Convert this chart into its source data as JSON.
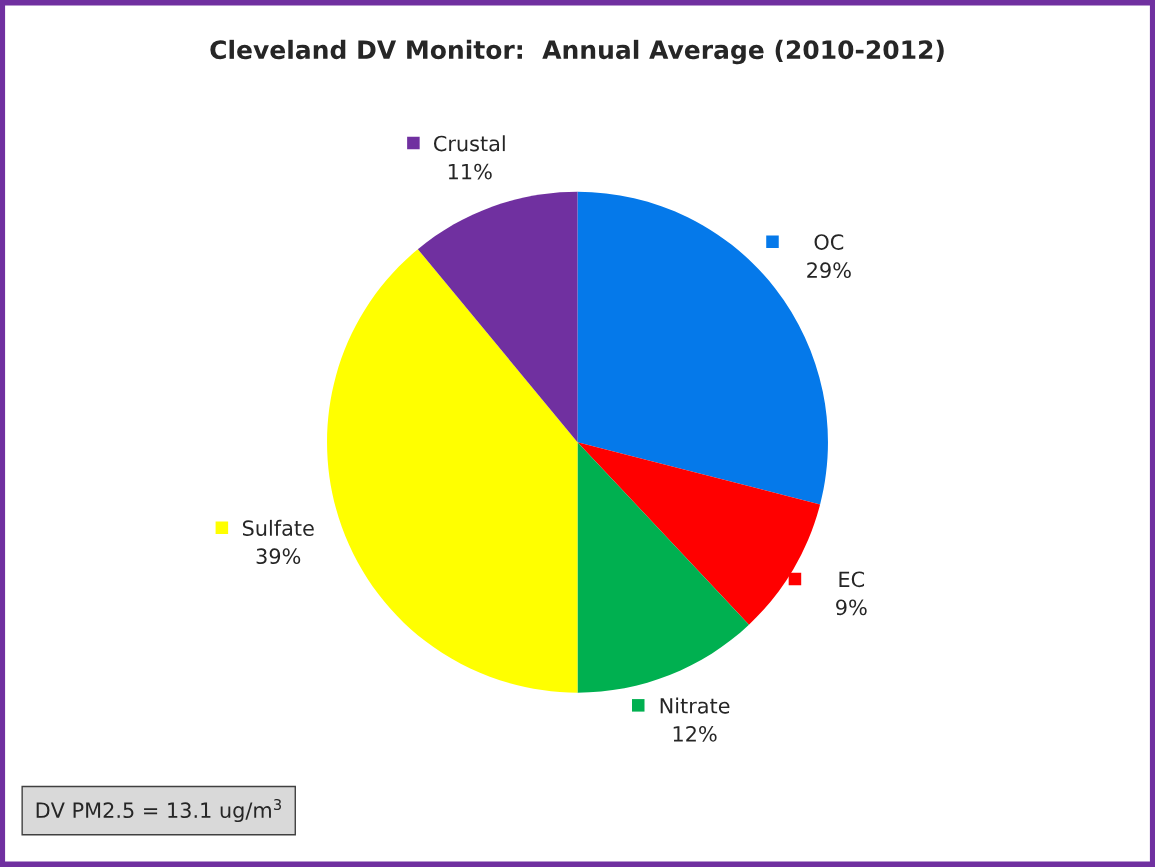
{
  "chart_data": {
    "type": "pie",
    "title": "Cleveland DV Monitor:  Annual Average (2010-2012)",
    "categories": [
      "OC",
      "EC",
      "Nitrate",
      "Sulfate",
      "Crustal"
    ],
    "values": [
      29,
      9,
      12,
      39,
      11
    ],
    "colors": [
      "#0579ea",
      "#ff0000",
      "#00b050",
      "#ffff00",
      "#7030a0"
    ],
    "value_labels": [
      "29%",
      "9%",
      "12%",
      "39%",
      "11%"
    ],
    "legend": "top left",
    "annotations": [
      "DV PM2.5 = 13.1 ug/m$^{3}$"
    ]
  }
}
